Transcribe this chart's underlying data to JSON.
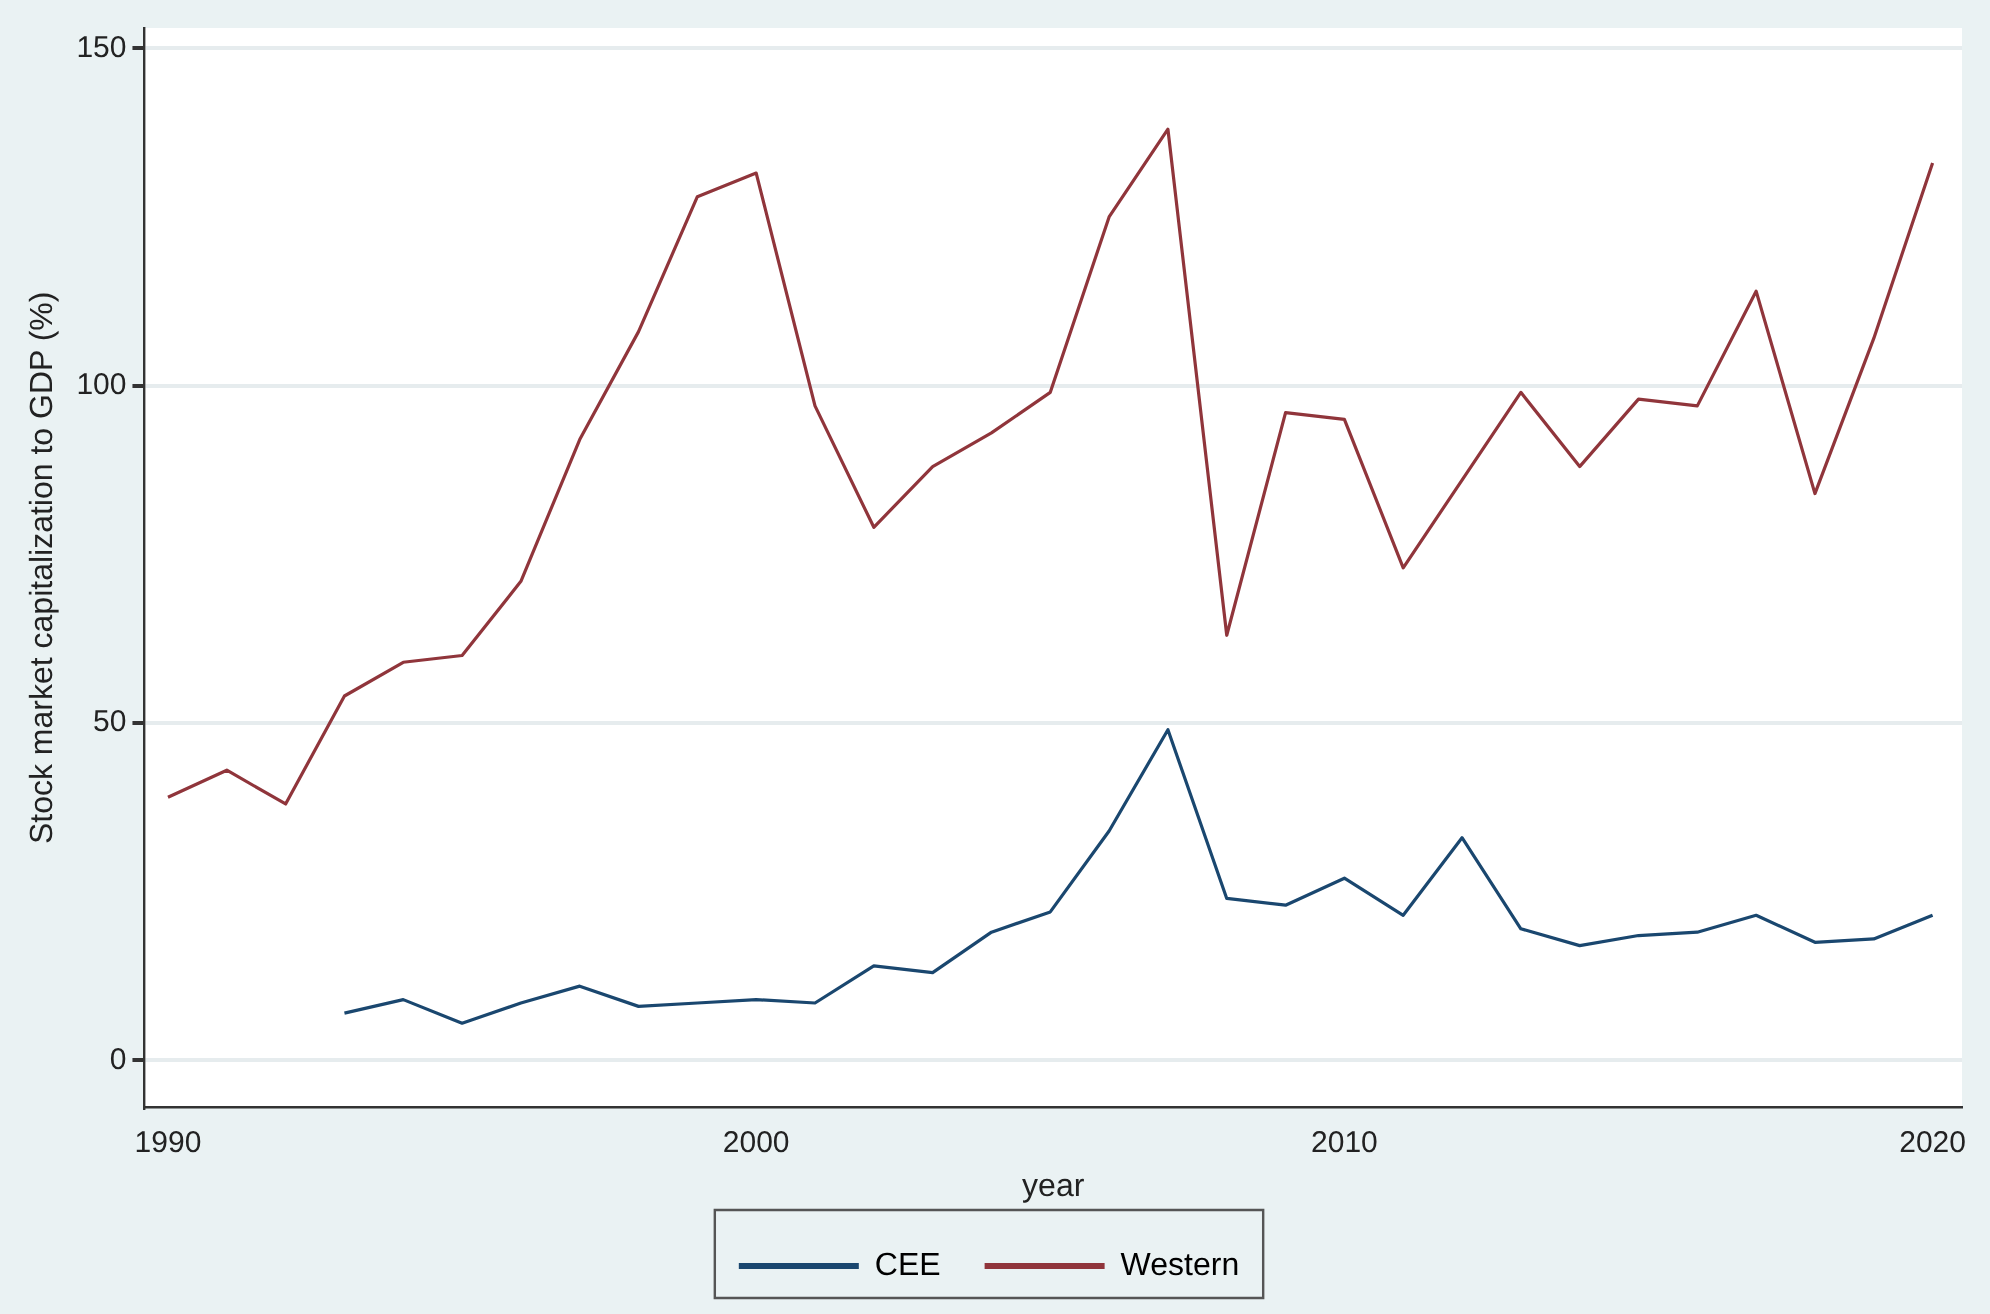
{
  "chart_data": {
    "type": "line",
    "xlabel": "year",
    "ylabel": "Stock market capitalization to GDP (%)",
    "x": [
      1990,
      1991,
      1992,
      1993,
      1994,
      1995,
      1996,
      1997,
      1998,
      1999,
      2000,
      2001,
      2002,
      2003,
      2004,
      2005,
      2006,
      2007,
      2008,
      2009,
      2010,
      2011,
      2012,
      2013,
      2014,
      2015,
      2016,
      2017,
      2018,
      2019,
      2020
    ],
    "series": [
      {
        "name": "CEE",
        "color": "#1a476f",
        "values": [
          null,
          null,
          null,
          7,
          9,
          5.5,
          8.5,
          11,
          8,
          8.5,
          9,
          8.5,
          14,
          13,
          19,
          22,
          34,
          49,
          24,
          23,
          27,
          21.5,
          33,
          19.5,
          17,
          18.5,
          19,
          21.5,
          17.5,
          18,
          21.5
        ]
      },
      {
        "name": "Western",
        "color": "#90353b",
        "values": [
          39,
          43,
          38,
          54,
          59,
          60,
          71,
          92,
          108,
          128,
          131.5,
          97,
          79,
          88,
          93,
          99,
          125,
          138,
          63,
          96,
          95,
          73,
          86,
          99,
          88,
          98,
          97,
          114,
          84,
          107,
          133
        ]
      }
    ],
    "xlim": [
      1989.6,
      2020.5
    ],
    "xticks": [
      1990,
      2000,
      2010,
      2020
    ],
    "ylim": [
      -7,
      153
    ],
    "yticks": [
      0,
      50,
      100,
      150
    ],
    "grid": "y",
    "legend": "bottom",
    "marker": "none",
    "line_style": "solid"
  }
}
